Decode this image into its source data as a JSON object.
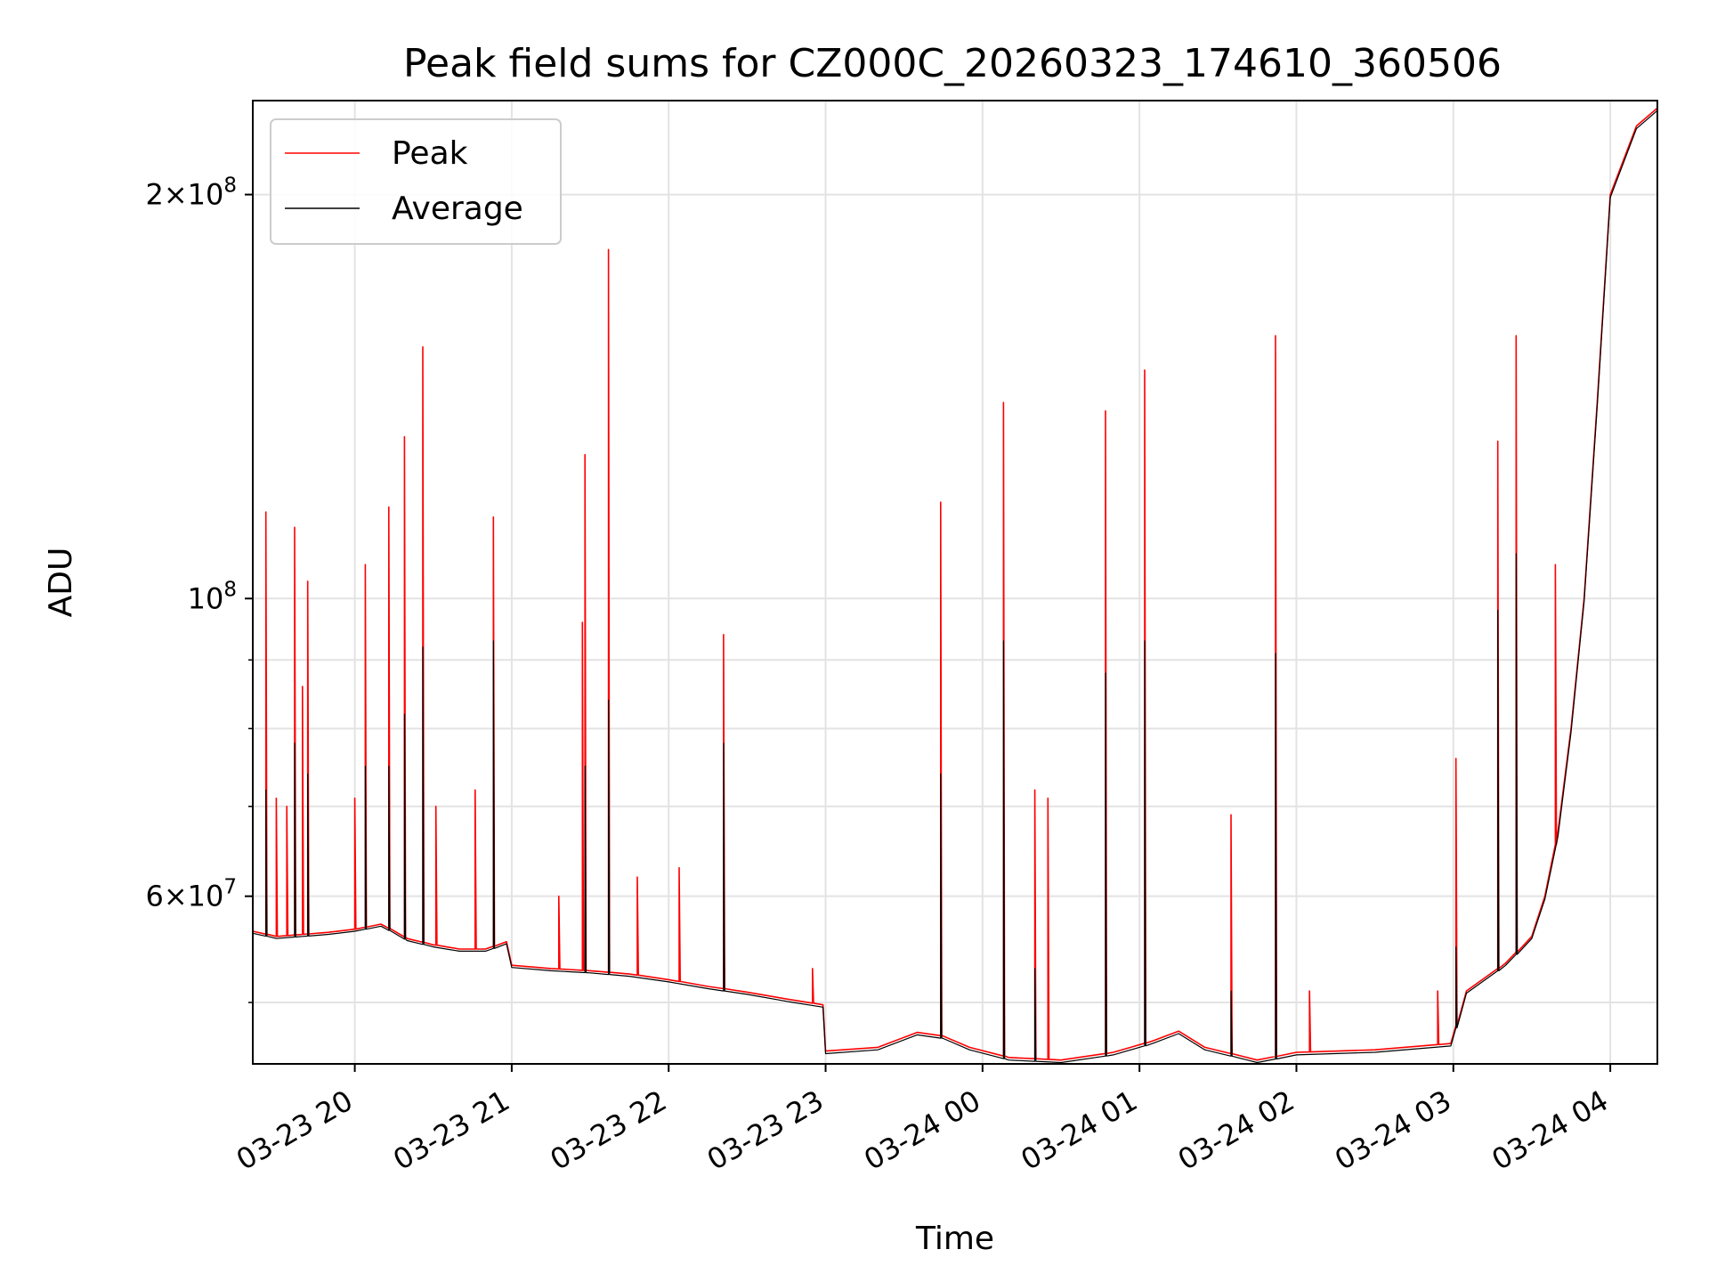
{
  "chart_data": {
    "type": "line",
    "title": "Peak field sums for CZ000C_20260323_174610_360506",
    "xlabel": "Time",
    "ylabel": "ADU",
    "yscale": "log",
    "grid": true,
    "legend_position": "top-left",
    "xlim": [
      "2026-03-23 19:21",
      "2026-03-24 04:18"
    ],
    "ylim": [
      45000000,
      235000000
    ],
    "x_ticks": [
      "03-23 20",
      "03-23 21",
      "03-23 22",
      "03-23 23",
      "03-24 00",
      "03-24 01",
      "03-24 02",
      "03-24 03",
      "03-24 04"
    ],
    "y_ticks": [
      {
        "value": 200000000,
        "label_mantissa": "2",
        "label_exp": "8"
      },
      {
        "value": 100000000,
        "label_mantissa": "",
        "label_exp": "8"
      },
      {
        "value": 60000000,
        "label_mantissa": "6",
        "label_exp": "7"
      }
    ],
    "y_minor_ticks": [
      50000000,
      70000000,
      80000000,
      90000000
    ],
    "series": [
      {
        "name": "Peak",
        "color": "#ff0000",
        "points": [
          [
            "2026-03-23 19:21",
            56500000
          ],
          [
            "2026-03-23 19:30",
            56000000
          ],
          [
            "2026-03-23 19:40",
            56200000
          ],
          [
            "2026-03-23 19:50",
            56400000
          ],
          [
            "2026-03-23 20:00",
            56700000
          ],
          [
            "2026-03-23 20:10",
            57200000
          ],
          [
            "2026-03-23 20:20",
            55800000
          ],
          [
            "2026-03-23 20:30",
            55200000
          ],
          [
            "2026-03-23 20:40",
            54800000
          ],
          [
            "2026-03-23 20:50",
            54800000
          ],
          [
            "2026-03-23 20:58",
            55500000
          ],
          [
            "2026-03-23 21:00",
            53300000
          ],
          [
            "2026-03-23 21:15",
            53000000
          ],
          [
            "2026-03-23 21:30",
            52800000
          ],
          [
            "2026-03-23 21:45",
            52500000
          ],
          [
            "2026-03-23 22:00",
            52000000
          ],
          [
            "2026-03-23 22:15",
            51400000
          ],
          [
            "2026-03-23 22:30",
            50900000
          ],
          [
            "2026-03-23 22:45",
            50300000
          ],
          [
            "2026-03-23 22:59",
            49800000
          ],
          [
            "2026-03-23 23:00",
            46000000
          ],
          [
            "2026-03-23 23:20",
            46300000
          ],
          [
            "2026-03-23 23:35",
            47500000
          ],
          [
            "2026-03-23 23:45",
            47200000
          ],
          [
            "2026-03-23 23:55",
            46300000
          ],
          [
            "2026-03-24 00:10",
            45500000
          ],
          [
            "2026-03-24 00:30",
            45300000
          ],
          [
            "2026-03-24 00:50",
            45900000
          ],
          [
            "2026-03-24 01:05",
            46800000
          ],
          [
            "2026-03-24 01:15",
            47600000
          ],
          [
            "2026-03-24 01:25",
            46300000
          ],
          [
            "2026-03-24 01:45",
            45300000
          ],
          [
            "2026-03-24 02:00",
            45900000
          ],
          [
            "2026-03-24 02:30",
            46100000
          ],
          [
            "2026-03-24 02:59",
            46600000
          ],
          [
            "2026-03-24 03:05",
            51000000
          ],
          [
            "2026-03-24 03:20",
            53500000
          ],
          [
            "2026-03-24 03:30",
            56000000
          ],
          [
            "2026-03-24 03:35",
            60000000
          ],
          [
            "2026-03-24 03:40",
            67000000
          ],
          [
            "2026-03-24 03:45",
            80000000
          ],
          [
            "2026-03-24 03:50",
            100000000
          ],
          [
            "2026-03-24 03:55",
            140000000
          ],
          [
            "2026-03-24 04:00",
            200000000
          ],
          [
            "2026-03-24 04:10",
            225000000
          ],
          [
            "2026-03-24 04:18",
            232000000
          ]
        ],
        "spikes": [
          [
            "2026-03-23 19:26",
            116000000
          ],
          [
            "2026-03-23 19:30",
            71000000
          ],
          [
            "2026-03-23 19:34",
            70000000
          ],
          [
            "2026-03-23 19:37",
            113000000
          ],
          [
            "2026-03-23 19:40",
            86000000
          ],
          [
            "2026-03-23 19:42",
            103000000
          ],
          [
            "2026-03-23 20:00",
            71000000
          ],
          [
            "2026-03-23 20:04",
            106000000
          ],
          [
            "2026-03-23 20:13",
            117000000
          ],
          [
            "2026-03-23 20:19",
            132000000
          ],
          [
            "2026-03-23 20:26",
            154000000
          ],
          [
            "2026-03-23 20:31",
            70000000
          ],
          [
            "2026-03-23 20:46",
            72000000
          ],
          [
            "2026-03-23 20:53",
            115000000
          ],
          [
            "2026-03-23 21:18",
            60000000
          ],
          [
            "2026-03-23 21:27",
            96000000
          ],
          [
            "2026-03-23 21:28",
            128000000
          ],
          [
            "2026-03-23 21:37",
            182000000
          ],
          [
            "2026-03-23 21:48",
            62000000
          ],
          [
            "2026-03-23 22:04",
            63000000
          ],
          [
            "2026-03-23 22:21",
            94000000
          ],
          [
            "2026-03-23 22:55",
            53000000
          ],
          [
            "2026-03-23 23:44",
            118000000
          ],
          [
            "2026-03-24 00:08",
            140000000
          ],
          [
            "2026-03-24 00:20",
            72000000
          ],
          [
            "2026-03-24 00:25",
            71000000
          ],
          [
            "2026-03-24 00:47",
            138000000
          ],
          [
            "2026-03-24 01:02",
            148000000
          ],
          [
            "2026-03-24 01:35",
            69000000
          ],
          [
            "2026-03-24 01:52",
            157000000
          ],
          [
            "2026-03-24 02:05",
            51000000
          ],
          [
            "2026-03-24 02:54",
            51000000
          ],
          [
            "2026-03-24 03:01",
            76000000
          ],
          [
            "2026-03-24 03:17",
            131000000
          ],
          [
            "2026-03-24 03:24",
            157000000
          ],
          [
            "2026-03-24 03:39",
            106000000
          ]
        ]
      },
      {
        "name": "Average",
        "color": "#000000",
        "points": [
          [
            "2026-03-23 19:21",
            56300000
          ],
          [
            "2026-03-23 19:30",
            55800000
          ],
          [
            "2026-03-23 19:40",
            56000000
          ],
          [
            "2026-03-23 19:50",
            56200000
          ],
          [
            "2026-03-23 20:00",
            56500000
          ],
          [
            "2026-03-23 20:10",
            57000000
          ],
          [
            "2026-03-23 20:20",
            55600000
          ],
          [
            "2026-03-23 20:30",
            55000000
          ],
          [
            "2026-03-23 20:40",
            54600000
          ],
          [
            "2026-03-23 20:50",
            54600000
          ],
          [
            "2026-03-23 20:58",
            55300000
          ],
          [
            "2026-03-23 21:00",
            53100000
          ],
          [
            "2026-03-23 21:15",
            52800000
          ],
          [
            "2026-03-23 21:30",
            52600000
          ],
          [
            "2026-03-23 21:45",
            52300000
          ],
          [
            "2026-03-23 22:00",
            51800000
          ],
          [
            "2026-03-23 22:15",
            51200000
          ],
          [
            "2026-03-23 22:30",
            50700000
          ],
          [
            "2026-03-23 22:45",
            50100000
          ],
          [
            "2026-03-23 22:59",
            49600000
          ],
          [
            "2026-03-23 23:00",
            45800000
          ],
          [
            "2026-03-23 23:20",
            46100000
          ],
          [
            "2026-03-23 23:35",
            47300000
          ],
          [
            "2026-03-23 23:45",
            47000000
          ],
          [
            "2026-03-23 23:55",
            46100000
          ],
          [
            "2026-03-24 00:10",
            45300000
          ],
          [
            "2026-03-24 00:30",
            45100000
          ],
          [
            "2026-03-24 00:50",
            45700000
          ],
          [
            "2026-03-24 01:05",
            46600000
          ],
          [
            "2026-03-24 01:15",
            47400000
          ],
          [
            "2026-03-24 01:25",
            46100000
          ],
          [
            "2026-03-24 01:45",
            45100000
          ],
          [
            "2026-03-24 02:00",
            45700000
          ],
          [
            "2026-03-24 02:30",
            45900000
          ],
          [
            "2026-03-24 02:59",
            46400000
          ],
          [
            "2026-03-24 03:05",
            50800000
          ],
          [
            "2026-03-24 03:20",
            53300000
          ],
          [
            "2026-03-24 03:30",
            55800000
          ],
          [
            "2026-03-24 03:35",
            59700000
          ],
          [
            "2026-03-24 03:40",
            66500000
          ],
          [
            "2026-03-24 03:45",
            79500000
          ],
          [
            "2026-03-24 03:50",
            99500000
          ],
          [
            "2026-03-24 03:55",
            139000000
          ],
          [
            "2026-03-24 04:00",
            199000000
          ],
          [
            "2026-03-24 04:10",
            224000000
          ],
          [
            "2026-03-24 04:18",
            231000000
          ]
        ],
        "spikes": [
          [
            "2026-03-23 19:26",
            72000000
          ],
          [
            "2026-03-23 19:37",
            78000000
          ],
          [
            "2026-03-23 19:42",
            74000000
          ],
          [
            "2026-03-23 20:04",
            75000000
          ],
          [
            "2026-03-23 20:13",
            75000000
          ],
          [
            "2026-03-23 20:19",
            82000000
          ],
          [
            "2026-03-23 20:26",
            92000000
          ],
          [
            "2026-03-23 20:53",
            93000000
          ],
          [
            "2026-03-23 21:28",
            75000000
          ],
          [
            "2026-03-23 21:37",
            84000000
          ],
          [
            "2026-03-23 22:21",
            78000000
          ],
          [
            "2026-03-23 23:44",
            74000000
          ],
          [
            "2026-03-24 00:08",
            93000000
          ],
          [
            "2026-03-24 00:20",
            53000000
          ],
          [
            "2026-03-24 00:47",
            88000000
          ],
          [
            "2026-03-24 01:02",
            93000000
          ],
          [
            "2026-03-24 01:35",
            51000000
          ],
          [
            "2026-03-24 01:52",
            91000000
          ],
          [
            "2026-03-24 03:01",
            55000000
          ],
          [
            "2026-03-24 03:17",
            98000000
          ],
          [
            "2026-03-24 03:24",
            108000000
          ]
        ]
      }
    ]
  }
}
